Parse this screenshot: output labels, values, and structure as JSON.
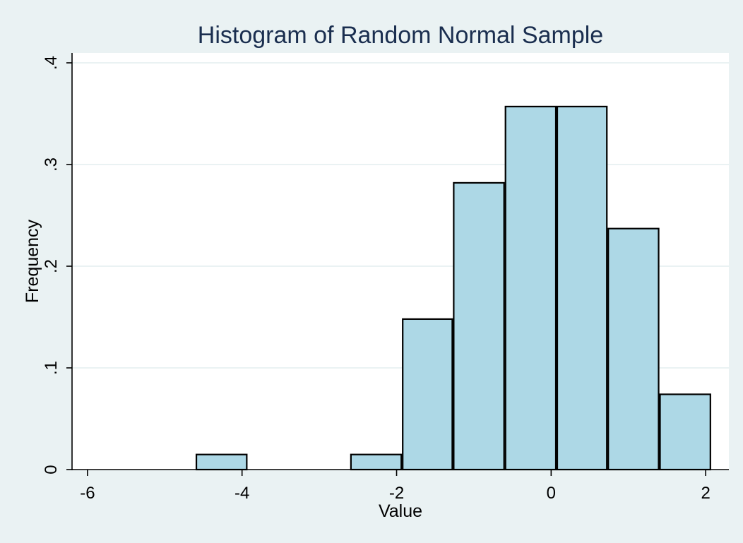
{
  "chart_data": {
    "type": "bar",
    "title": "Histogram of Random Normal Sample",
    "xlabel": "Value",
    "ylabel": "Frequency",
    "xlim": [
      -6.2,
      2.3
    ],
    "ylim": [
      0,
      0.4
    ],
    "x_ticks": [
      -6,
      -4,
      -2,
      0,
      2
    ],
    "x_tick_labels": [
      "-6",
      "-4",
      "-2",
      "0",
      "2"
    ],
    "y_ticks": [
      0,
      0.1,
      0.2,
      0.3,
      0.4
    ],
    "y_tick_labels": [
      "0",
      ".1",
      ".2",
      ".3",
      ".4"
    ],
    "grid": true,
    "bar_color": "#add8e6",
    "background_color": "#eaf2f3",
    "title_color": "#1a2e4f",
    "bins": [
      {
        "start": -4.6,
        "end": -3.93,
        "value": 0.0148
      },
      {
        "start": -3.93,
        "end": -3.27,
        "value": 0
      },
      {
        "start": -3.27,
        "end": -2.6,
        "value": 0
      },
      {
        "start": -2.6,
        "end": -1.93,
        "value": 0.0148
      },
      {
        "start": -1.93,
        "end": -1.27,
        "value": 0.148
      },
      {
        "start": -1.27,
        "end": -0.6,
        "value": 0.282
      },
      {
        "start": -0.6,
        "end": 0.07,
        "value": 0.357
      },
      {
        "start": 0.07,
        "end": 0.73,
        "value": 0.357
      },
      {
        "start": 0.73,
        "end": 1.4,
        "value": 0.237
      },
      {
        "start": 1.4,
        "end": 2.07,
        "value": 0.074
      }
    ]
  }
}
